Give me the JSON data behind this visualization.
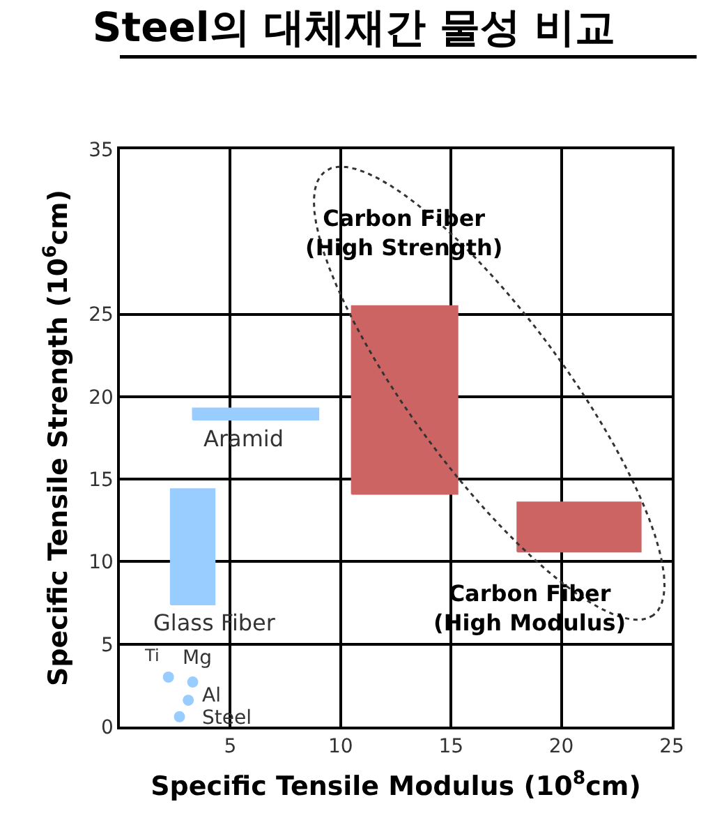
{
  "chart_data": {
    "type": "area",
    "title": "Steel의 대체재간 물성 비교",
    "xlabel": "Specific Tensile Modulus (10$^{8}$cm)",
    "ylabel": "Specific Tensile Strength (10$^{6}$cm)",
    "xlim": [
      0,
      25
    ],
    "xticks": [
      5,
      10,
      15,
      20,
      25
    ],
    "ylim": [
      0,
      35
    ],
    "yticks": [
      0,
      5,
      10,
      15,
      20,
      25,
      35
    ],
    "grid": true,
    "legend": false,
    "series": [
      {
        "type": "scatter",
        "color": "#99ccff",
        "marker": "circle",
        "x": [
          2.2,
          3.3,
          3.1,
          2.7
        ],
        "values": [
          3.0,
          2.7,
          1.6,
          0.6
        ]
      },
      {
        "name": "Carbon Fiber\n(High Strength)",
        "color": "#cd6464",
        "x": [
          10.5,
          15.3,
          15.3,
          10.5,
          10.5
        ],
        "values": [
          14.1,
          14.1,
          25.5,
          25.5,
          14.1
        ]
      },
      {
        "name": "Carbon Fiber\n(High Modulus)",
        "color": "#cd6464",
        "x": [
          18.0,
          23.6,
          23.6,
          18.0,
          18.0
        ],
        "values": [
          10.6,
          10.6,
          13.6,
          13.6,
          10.6
        ]
      },
      {
        "name": "Aramid",
        "color": "#99ccff",
        "x": [
          3.3,
          9.0,
          9.0,
          3.3,
          3.3
        ],
        "values": [
          18.6,
          18.6,
          19.3,
          19.3,
          18.6
        ]
      },
      {
        "name": "Glass Fiber",
        "color": "#99ccff",
        "x": [
          2.3,
          4.3,
          4.3,
          2.3,
          2.3
        ],
        "values": [
          7.4,
          7.4,
          14.4,
          14.4,
          7.4
        ]
      }
    ],
    "annotations": [
      {
        "text": "Ti",
        "x": 2.2,
        "y": 3.0
      },
      {
        "text": "Mg",
        "x": 3.3,
        "y": 2.7
      },
      {
        "text": "Al",
        "x": 3.1,
        "y": 1.6
      },
      {
        "text": "Steel",
        "x": 2.7,
        "y": 0.6
      }
    ]
  }
}
